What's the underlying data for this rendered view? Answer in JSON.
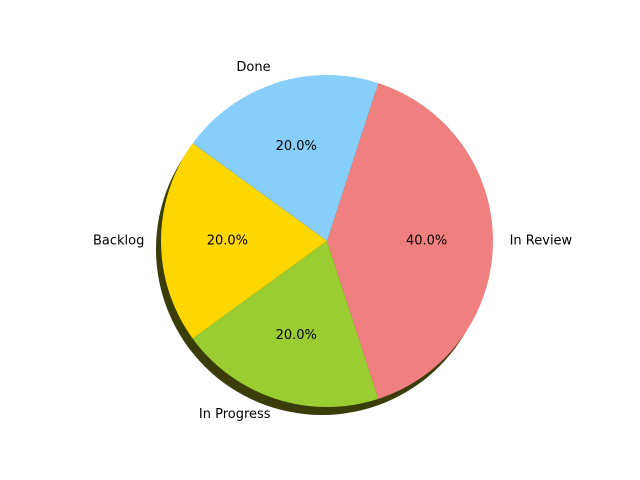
{
  "chart_data": {
    "type": "pie",
    "categories": [
      "In Review",
      "Done",
      "Backlog",
      "In Progress"
    ],
    "values": [
      40,
      20,
      20,
      20
    ],
    "percent_labels": [
      "40.0%",
      "20.0%",
      "20.0%",
      "20.0%"
    ],
    "colors": [
      "#f08080",
      "#87cefa",
      "#ffd700",
      "#9acd32"
    ],
    "start_angle_deg": -72,
    "direction": "counterclockwise",
    "shadow": true,
    "shadow_color": "#3a3d0a",
    "title": "",
    "legend": "none"
  }
}
